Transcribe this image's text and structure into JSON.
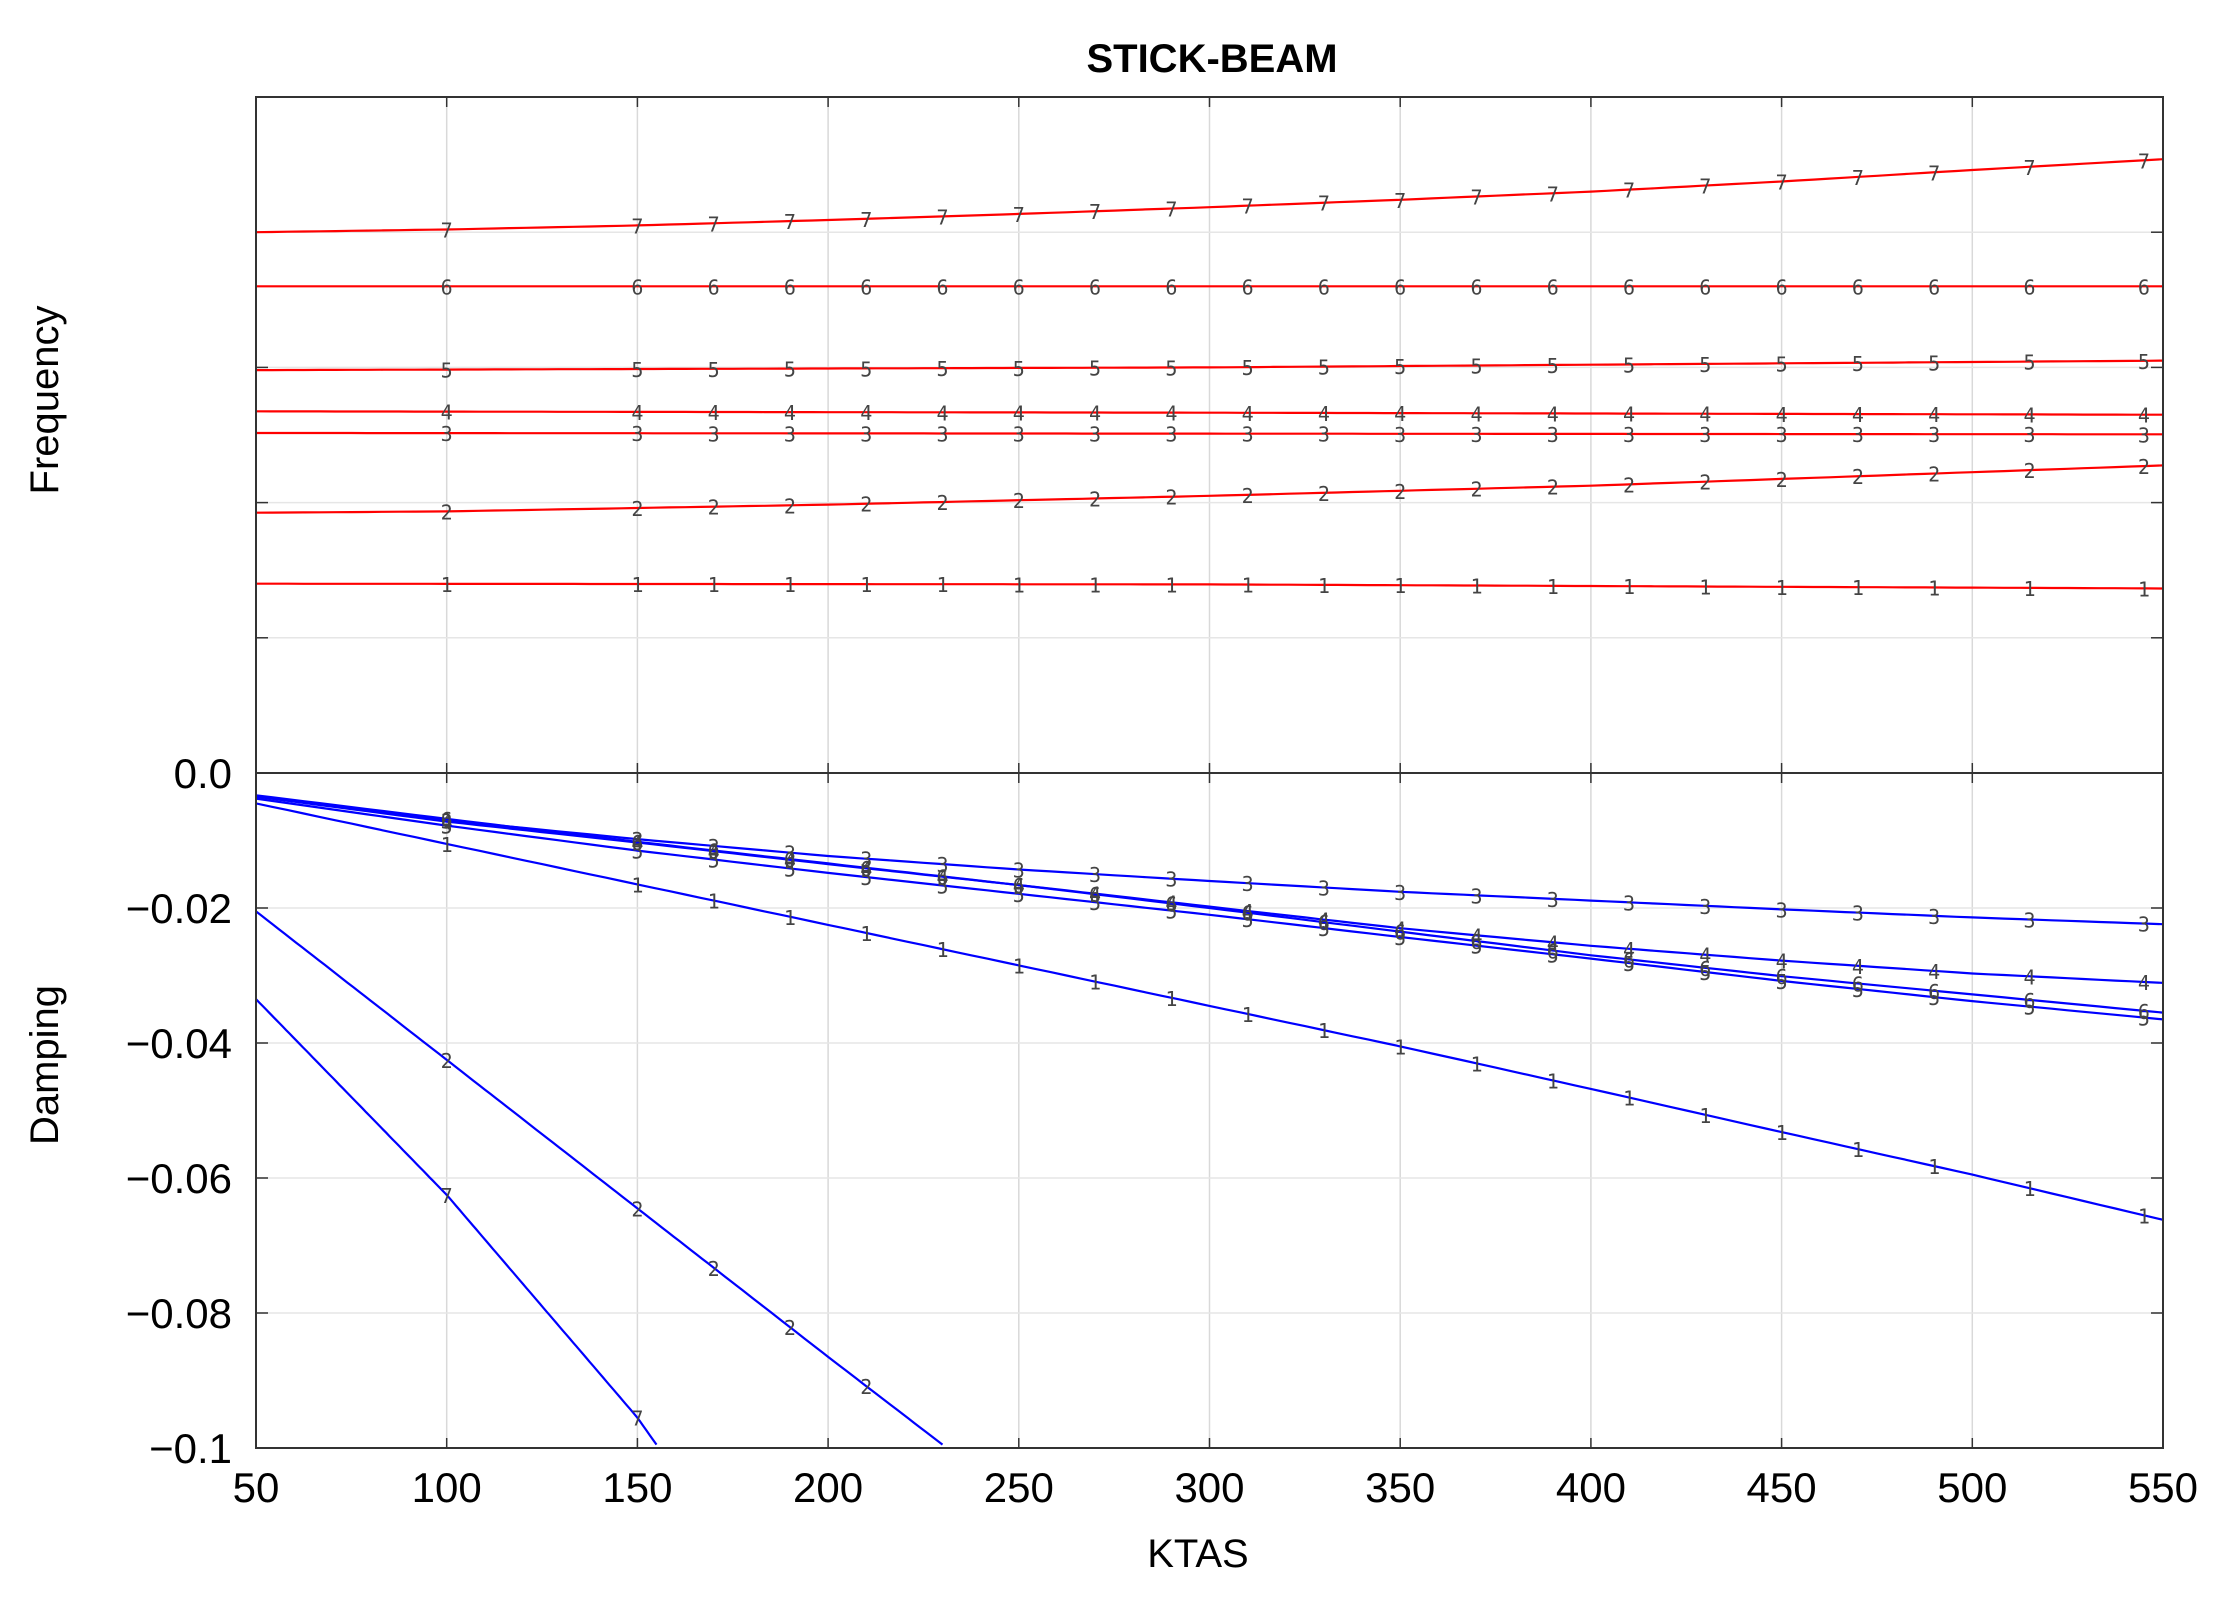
{
  "chart_data": {
    "title": "STICK-BEAM",
    "type": "line",
    "x": {
      "label": "KTAS",
      "lim": [
        50,
        550
      ],
      "ticks": [
        50,
        100,
        150,
        200,
        250,
        300,
        350,
        400,
        450,
        500,
        550
      ],
      "tick_labels": [
        "50",
        "100",
        "150",
        "200",
        "250",
        "300",
        "350",
        "400",
        "450",
        "500",
        "550"
      ]
    },
    "marker_x": [
      100,
      150,
      170,
      190,
      210,
      230,
      250,
      270,
      290,
      310,
      330,
      350,
      370,
      390,
      410,
      430,
      450,
      470,
      490,
      515,
      545
    ],
    "grid": true,
    "panels": [
      {
        "name": "frequency",
        "ylabel": "Frequency",
        "ytick_labels": false,
        "ylim": [
          0,
          100
        ],
        "yticks": [
          20,
          40,
          60,
          80
        ],
        "line_color": "#ff0000",
        "series": [
          {
            "name": "1",
            "x": [
              50,
              300,
              550
            ],
            "y": [
              28.0,
              27.9,
              27.3
            ]
          },
          {
            "name": "2",
            "x": [
              50,
              100,
              200,
              300,
              400,
              500,
              550
            ],
            "y": [
              38.5,
              38.7,
              39.7,
              41.0,
              42.5,
              44.5,
              45.5
            ]
          },
          {
            "name": "3",
            "x": [
              50,
              550
            ],
            "y": [
              50.3,
              50.1
            ]
          },
          {
            "name": "4",
            "x": [
              50,
              300,
              550
            ],
            "y": [
              53.5,
              53.3,
              53.0
            ]
          },
          {
            "name": "5",
            "x": [
              50,
              300,
              550
            ],
            "y": [
              59.6,
              60.0,
              61.0
            ]
          },
          {
            "name": "6",
            "x": [
              50,
              550
            ],
            "y": [
              72.0,
              72.0
            ]
          },
          {
            "name": "7",
            "x": [
              50,
              100,
              150,
              200,
              250,
              300,
              350,
              400,
              450,
              500,
              550
            ],
            "y": [
              80.0,
              80.4,
              81.0,
              81.8,
              82.7,
              83.7,
              84.8,
              86.0,
              87.5,
              89.2,
              90.8
            ]
          }
        ]
      },
      {
        "name": "damping",
        "ylabel": "Damping",
        "ylim": [
          -0.1,
          0.0
        ],
        "yticks": [
          0.0,
          -0.02,
          -0.04,
          -0.06,
          -0.08,
          -0.1
        ],
        "ytick_labels": [
          "0.0",
          "−0.02",
          "−0.04",
          "−0.06",
          "−0.08",
          "−0.1"
        ],
        "line_color": "#0000ff",
        "series": [
          {
            "name": "1",
            "x": [
              50,
              100,
              150,
              200,
              250,
              300,
              350,
              400,
              450,
              500,
              550
            ],
            "y": [
              -0.0045,
              -0.0105,
              -0.0165,
              -0.0225,
              -0.0285,
              -0.0345,
              -0.0405,
              -0.0468,
              -0.0532,
              -0.0595,
              -0.0662
            ]
          },
          {
            "name": "2",
            "x": [
              50,
              100,
              150,
              200,
              230
            ],
            "y": [
              -0.0205,
              -0.0425,
              -0.0645,
              -0.0865,
              -0.0995
            ]
          },
          {
            "name": "3",
            "x": [
              50,
              100,
              150,
              200,
              250,
              300,
              350,
              400,
              450,
              500,
              550
            ],
            "y": [
              -0.0035,
              -0.007,
              -0.0098,
              -0.0123,
              -0.0143,
              -0.016,
              -0.0176,
              -0.0189,
              -0.0202,
              -0.0214,
              -0.0224
            ]
          },
          {
            "name": "4",
            "x": [
              50,
              100,
              150,
              200,
              250,
              300,
              350,
              400,
              450,
              500,
              550
            ],
            "y": [
              -0.0035,
              -0.0072,
              -0.0103,
              -0.0135,
              -0.0166,
              -0.0198,
              -0.023,
              -0.0256,
              -0.0278,
              -0.0297,
              -0.0311
            ]
          },
          {
            "name": "5",
            "x": [
              50,
              100,
              150,
              200,
              250,
              300,
              350,
              400,
              450,
              500,
              550
            ],
            "y": [
              -0.0038,
              -0.0078,
              -0.0115,
              -0.0148,
              -0.0179,
              -0.021,
              -0.0243,
              -0.0275,
              -0.0308,
              -0.0338,
              -0.0365
            ]
          },
          {
            "name": "6",
            "x": [
              50,
              100,
              150,
              200,
              250,
              300,
              350,
              400,
              450,
              500,
              550
            ],
            "y": [
              -0.0033,
              -0.0068,
              -0.0102,
              -0.0134,
              -0.0166,
              -0.02,
              -0.0235,
              -0.027,
              -0.0301,
              -0.0328,
              -0.0355
            ]
          },
          {
            "name": "7",
            "x": [
              50,
              100,
              150,
              155
            ],
            "y": [
              -0.0335,
              -0.0625,
              -0.0955,
              -0.0995
            ]
          }
        ]
      }
    ]
  }
}
